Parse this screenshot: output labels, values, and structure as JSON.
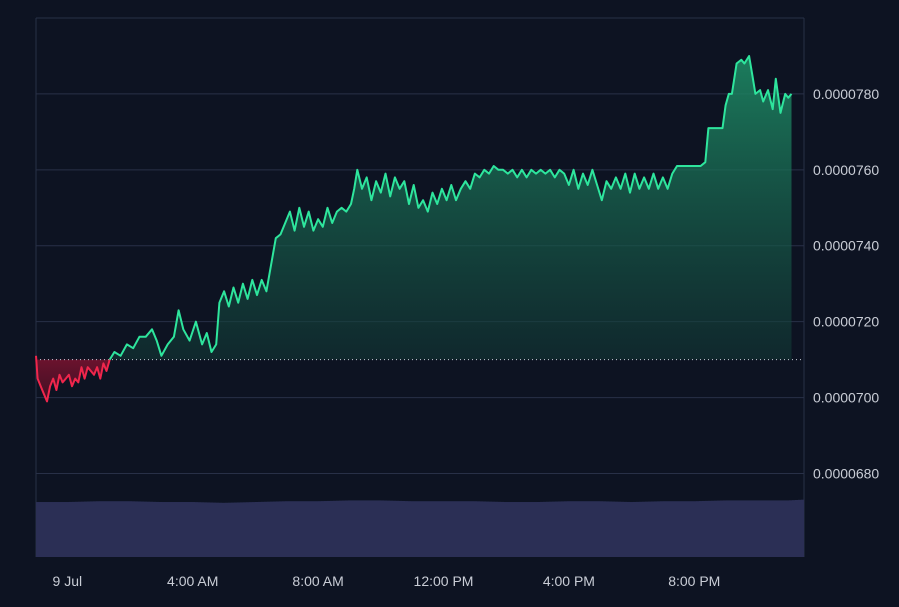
{
  "chart_data": {
    "type": "area",
    "baseline": 7.1e-05,
    "ylim": [
      6.58e-05,
      8e-05
    ],
    "y_ticks": [
      {
        "value": 7.8e-05,
        "label": "0.0000780"
      },
      {
        "value": 7.6e-05,
        "label": "0.0000760"
      },
      {
        "value": 7.4e-05,
        "label": "0.0000740"
      },
      {
        "value": 7.2e-05,
        "label": "0.0000720"
      },
      {
        "value": 7e-05,
        "label": "0.0000700"
      },
      {
        "value": 6.8e-05,
        "label": "0.0000680"
      }
    ],
    "x_ticks": [
      "9 Jul",
      "4:00 AM",
      "8:00 AM",
      "12:00 PM",
      "4:00 PM",
      "8:00 PM"
    ],
    "x_tick_hours": [
      0,
      4,
      8,
      12,
      16,
      20
    ],
    "xlim_hours": [
      -1,
      23.5
    ],
    "grid": true,
    "colors": {
      "background": "#0d1322",
      "grid": "#283047",
      "up_line": "#2ee59d",
      "down_line": "#f0264c",
      "baseline": "#c8cdd8",
      "volume": "#2b2f55",
      "axis_text": "#c9cdd6"
    },
    "price_series": [
      [
        -1.0,
        7.11e-05
      ],
      [
        -0.95,
        7.05e-05
      ],
      [
        -0.85,
        7.03e-05
      ],
      [
        -0.75,
        7.01e-05
      ],
      [
        -0.65,
        6.99e-05
      ],
      [
        -0.55,
        7.03e-05
      ],
      [
        -0.45,
        7.05e-05
      ],
      [
        -0.35,
        7.02e-05
      ],
      [
        -0.25,
        7.06e-05
      ],
      [
        -0.15,
        7.04e-05
      ],
      [
        -0.05,
        7.05e-05
      ],
      [
        0.05,
        7.06e-05
      ],
      [
        0.15,
        7.03e-05
      ],
      [
        0.25,
        7.05e-05
      ],
      [
        0.35,
        7.04e-05
      ],
      [
        0.45,
        7.08e-05
      ],
      [
        0.55,
        7.05e-05
      ],
      [
        0.65,
        7.08e-05
      ],
      [
        0.75,
        7.07e-05
      ],
      [
        0.85,
        7.06e-05
      ],
      [
        0.95,
        7.08e-05
      ],
      [
        1.05,
        7.05e-05
      ],
      [
        1.15,
        7.09e-05
      ],
      [
        1.25,
        7.07e-05
      ],
      [
        1.35,
        7.1e-05
      ],
      [
        1.5,
        7.12e-05
      ],
      [
        1.7,
        7.11e-05
      ],
      [
        1.9,
        7.14e-05
      ],
      [
        2.1,
        7.13e-05
      ],
      [
        2.3,
        7.16e-05
      ],
      [
        2.5,
        7.16e-05
      ],
      [
        2.7,
        7.18e-05
      ],
      [
        2.85,
        7.15e-05
      ],
      [
        3.0,
        7.11e-05
      ],
      [
        3.2,
        7.14e-05
      ],
      [
        3.4,
        7.16e-05
      ],
      [
        3.55,
        7.23e-05
      ],
      [
        3.7,
        7.18e-05
      ],
      [
        3.9,
        7.15e-05
      ],
      [
        4.1,
        7.2e-05
      ],
      [
        4.3,
        7.14e-05
      ],
      [
        4.45,
        7.17e-05
      ],
      [
        4.6,
        7.12e-05
      ],
      [
        4.75,
        7.14e-05
      ],
      [
        4.85,
        7.25e-05
      ],
      [
        5.0,
        7.28e-05
      ],
      [
        5.15,
        7.24e-05
      ],
      [
        5.3,
        7.29e-05
      ],
      [
        5.45,
        7.25e-05
      ],
      [
        5.6,
        7.3e-05
      ],
      [
        5.75,
        7.26e-05
      ],
      [
        5.9,
        7.31e-05
      ],
      [
        6.05,
        7.27e-05
      ],
      [
        6.2,
        7.31e-05
      ],
      [
        6.35,
        7.28e-05
      ],
      [
        6.5,
        7.35e-05
      ],
      [
        6.65,
        7.42e-05
      ],
      [
        6.8,
        7.43e-05
      ],
      [
        6.95,
        7.46e-05
      ],
      [
        7.1,
        7.49e-05
      ],
      [
        7.25,
        7.44e-05
      ],
      [
        7.4,
        7.5e-05
      ],
      [
        7.55,
        7.45e-05
      ],
      [
        7.7,
        7.49e-05
      ],
      [
        7.85,
        7.44e-05
      ],
      [
        8.0,
        7.47e-05
      ],
      [
        8.15,
        7.45e-05
      ],
      [
        8.3,
        7.5e-05
      ],
      [
        8.45,
        7.46e-05
      ],
      [
        8.6,
        7.49e-05
      ],
      [
        8.75,
        7.5e-05
      ],
      [
        8.9,
        7.49e-05
      ],
      [
        9.05,
        7.51e-05
      ],
      [
        9.15,
        7.55e-05
      ],
      [
        9.25,
        7.6e-05
      ],
      [
        9.4,
        7.55e-05
      ],
      [
        9.55,
        7.58e-05
      ],
      [
        9.7,
        7.52e-05
      ],
      [
        9.85,
        7.57e-05
      ],
      [
        10.0,
        7.54e-05
      ],
      [
        10.15,
        7.59e-05
      ],
      [
        10.3,
        7.53e-05
      ],
      [
        10.45,
        7.58e-05
      ],
      [
        10.6,
        7.55e-05
      ],
      [
        10.75,
        7.57e-05
      ],
      [
        10.9,
        7.51e-05
      ],
      [
        11.05,
        7.56e-05
      ],
      [
        11.2,
        7.5e-05
      ],
      [
        11.35,
        7.52e-05
      ],
      [
        11.5,
        7.49e-05
      ],
      [
        11.65,
        7.54e-05
      ],
      [
        11.8,
        7.51e-05
      ],
      [
        11.95,
        7.55e-05
      ],
      [
        12.1,
        7.52e-05
      ],
      [
        12.25,
        7.56e-05
      ],
      [
        12.4,
        7.52e-05
      ],
      [
        12.55,
        7.55e-05
      ],
      [
        12.7,
        7.57e-05
      ],
      [
        12.85,
        7.55e-05
      ],
      [
        13.0,
        7.59e-05
      ],
      [
        13.15,
        7.58e-05
      ],
      [
        13.3,
        7.6e-05
      ],
      [
        13.45,
        7.59e-05
      ],
      [
        13.6,
        7.61e-05
      ],
      [
        13.75,
        7.6e-05
      ],
      [
        13.9,
        7.6e-05
      ],
      [
        14.05,
        7.59e-05
      ],
      [
        14.2,
        7.6e-05
      ],
      [
        14.35,
        7.58e-05
      ],
      [
        14.5,
        7.6e-05
      ],
      [
        14.65,
        7.58e-05
      ],
      [
        14.8,
        7.6e-05
      ],
      [
        14.95,
        7.59e-05
      ],
      [
        15.1,
        7.6e-05
      ],
      [
        15.25,
        7.59e-05
      ],
      [
        15.4,
        7.6e-05
      ],
      [
        15.55,
        7.58e-05
      ],
      [
        15.7,
        7.6e-05
      ],
      [
        15.85,
        7.59e-05
      ],
      [
        16.0,
        7.56e-05
      ],
      [
        16.15,
        7.6e-05
      ],
      [
        16.3,
        7.55e-05
      ],
      [
        16.45,
        7.59e-05
      ],
      [
        16.6,
        7.56e-05
      ],
      [
        16.75,
        7.6e-05
      ],
      [
        16.9,
        7.56e-05
      ],
      [
        17.05,
        7.52e-05
      ],
      [
        17.2,
        7.57e-05
      ],
      [
        17.35,
        7.55e-05
      ],
      [
        17.5,
        7.58e-05
      ],
      [
        17.65,
        7.55e-05
      ],
      [
        17.8,
        7.59e-05
      ],
      [
        17.95,
        7.54e-05
      ],
      [
        18.1,
        7.59e-05
      ],
      [
        18.25,
        7.55e-05
      ],
      [
        18.4,
        7.58e-05
      ],
      [
        18.55,
        7.55e-05
      ],
      [
        18.7,
        7.59e-05
      ],
      [
        18.85,
        7.55e-05
      ],
      [
        19.0,
        7.58e-05
      ],
      [
        19.15,
        7.55e-05
      ],
      [
        19.3,
        7.59e-05
      ],
      [
        19.45,
        7.61e-05
      ],
      [
        19.6,
        7.61e-05
      ],
      [
        19.9,
        7.61e-05
      ],
      [
        20.2,
        7.61e-05
      ],
      [
        20.35,
        7.62e-05
      ],
      [
        20.45,
        7.71e-05
      ],
      [
        20.7,
        7.71e-05
      ],
      [
        20.9,
        7.71e-05
      ],
      [
        21.0,
        7.77e-05
      ],
      [
        21.1,
        7.8e-05
      ],
      [
        21.2,
        7.8e-05
      ],
      [
        21.35,
        7.88e-05
      ],
      [
        21.5,
        7.89e-05
      ],
      [
        21.6,
        7.88e-05
      ],
      [
        21.75,
        7.9e-05
      ],
      [
        21.85,
        7.85e-05
      ],
      [
        21.95,
        7.8e-05
      ],
      [
        22.1,
        7.81e-05
      ],
      [
        22.2,
        7.78e-05
      ],
      [
        22.35,
        7.81e-05
      ],
      [
        22.5,
        7.76e-05
      ],
      [
        22.6,
        7.84e-05
      ],
      [
        22.75,
        7.75e-05
      ],
      [
        22.9,
        7.8e-05
      ],
      [
        23.0,
        7.79e-05
      ],
      [
        23.1,
        7.8e-05
      ]
    ],
    "volume_series": [
      [
        -1.0,
        68
      ],
      [
        0.0,
        68
      ],
      [
        1.0,
        69
      ],
      [
        2.0,
        69
      ],
      [
        3.0,
        68
      ],
      [
        4.0,
        68
      ],
      [
        5.0,
        67
      ],
      [
        6.0,
        68
      ],
      [
        7.0,
        69
      ],
      [
        8.0,
        69
      ],
      [
        9.0,
        70
      ],
      [
        10.0,
        70
      ],
      [
        11.0,
        69
      ],
      [
        12.0,
        69
      ],
      [
        13.0,
        69
      ],
      [
        14.0,
        68
      ],
      [
        15.0,
        68
      ],
      [
        16.0,
        69
      ],
      [
        17.0,
        69
      ],
      [
        18.0,
        68
      ],
      [
        19.0,
        69
      ],
      [
        20.0,
        69
      ],
      [
        21.0,
        70
      ],
      [
        22.0,
        70
      ],
      [
        23.0,
        70
      ],
      [
        23.5,
        71
      ]
    ]
  }
}
